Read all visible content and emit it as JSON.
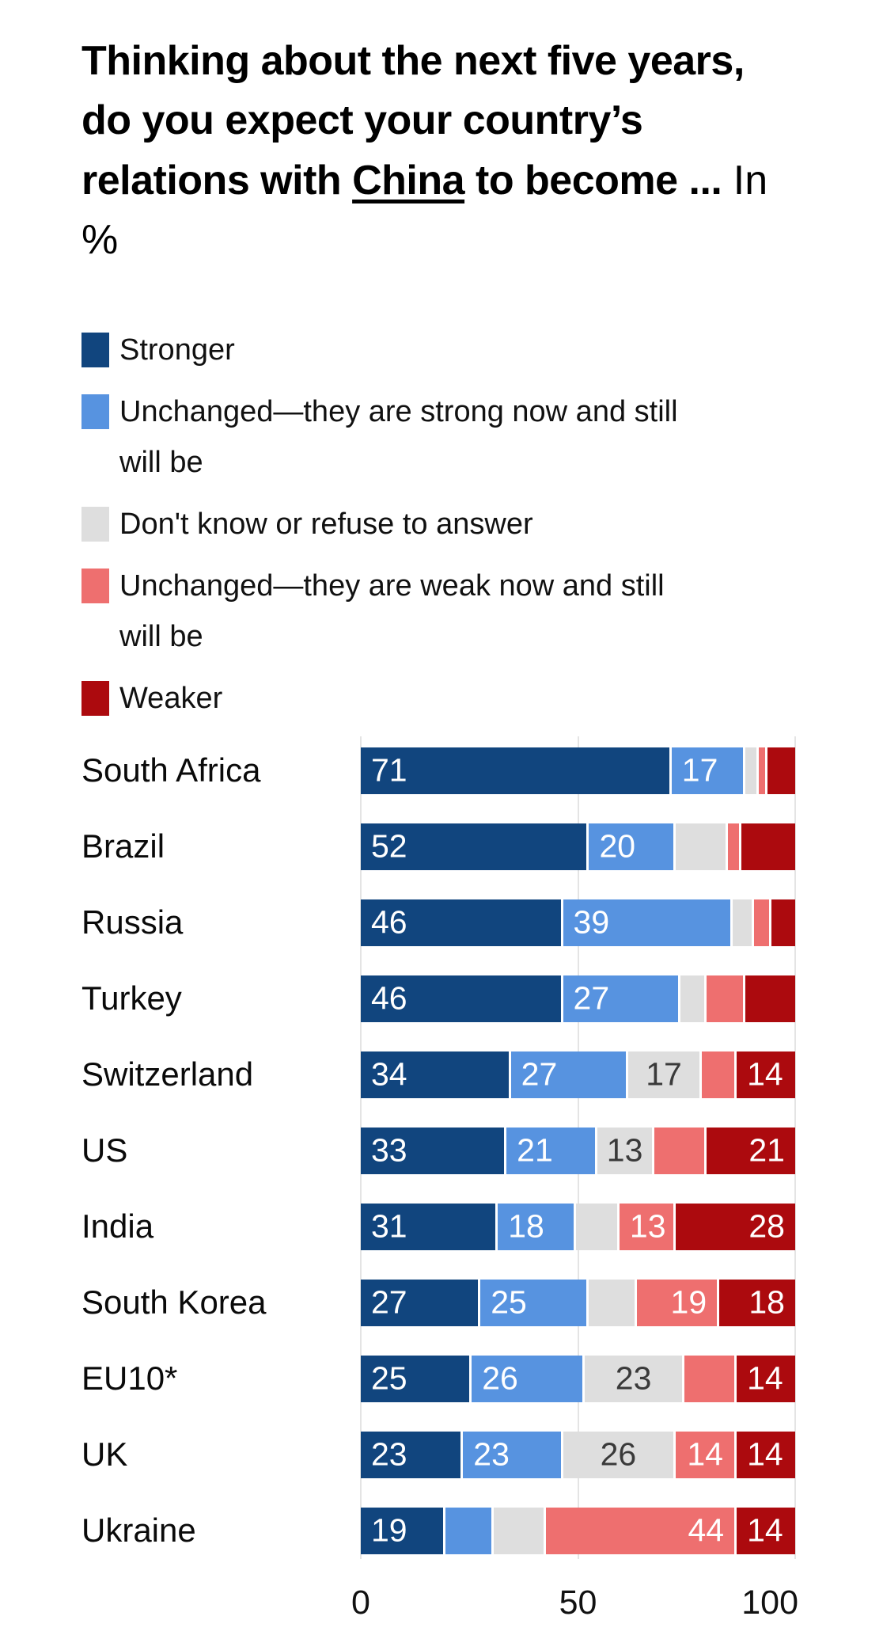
{
  "header": {
    "title_part1": "Thinking about the next five years, do you expect your country’s relations with ",
    "title_china": "China",
    "title_part2": " to become ...",
    "title_note": " In %"
  },
  "chart_data": {
    "type": "bar",
    "orientation": "horizontal-stacked",
    "title": "Thinking about the next five years, do you expect your country’s relations with China to become ...",
    "unit": "In %",
    "x_axis": {
      "min": 0,
      "max": 100,
      "ticks": [
        "0",
        "50",
        "100"
      ],
      "tick_positions": [
        "left",
        "center",
        "right"
      ]
    },
    "grid": "vertical lines at 0, 50, 100",
    "legend_position": "top-left, vertical list",
    "legend": [
      {
        "label": "Stronger",
        "color": "#11457E"
      },
      {
        "label": "Unchanged—they are strong now and still will be",
        "color": "#5793E0"
      },
      {
        "label": "Don't know or refuse to answer",
        "color": "#DEDEDE"
      },
      {
        "label": "Unchanged—they are weak now and still will be",
        "color": "#EE6F6F"
      },
      {
        "label": "Weaker",
        "color": "#AC0A0E"
      }
    ],
    "label_text_colors": [
      "#ffffff",
      "#ffffff",
      "#3a3a3a",
      "#ffffff",
      "#ffffff"
    ],
    "categories": [
      "South Africa",
      "Brazil",
      "Russia",
      "Turkey",
      "Switzerland",
      "US",
      "India",
      "South Korea",
      "EU10*",
      "UK",
      "Ukraine"
    ],
    "series": [
      {
        "name": "Stronger",
        "values": [
          71,
          52,
          46,
          46,
          34,
          33,
          31,
          27,
          25,
          23,
          19
        ]
      },
      {
        "name": "Unchanged—they are strong now and still will be",
        "values": [
          17,
          20,
          39,
          27,
          27,
          21,
          18,
          25,
          26,
          23,
          11
        ]
      },
      {
        "name": "Don't know or refuse to answer",
        "values": [
          3,
          12,
          5,
          6,
          17,
          13,
          10,
          11,
          23,
          26,
          12
        ]
      },
      {
        "name": "Unchanged—they are weak now and still will be",
        "values": [
          2,
          3,
          4,
          9,
          8,
          12,
          13,
          19,
          12,
          14,
          44
        ]
      },
      {
        "name": "Weaker",
        "values": [
          7,
          13,
          6,
          12,
          14,
          21,
          28,
          18,
          14,
          14,
          14
        ]
      }
    ],
    "rows": [
      {
        "country": "South Africa",
        "values": [
          71,
          17,
          3,
          2,
          7
        ],
        "labels": [
          "71",
          "17",
          "",
          "",
          ""
        ],
        "aligns": [
          "left",
          "left",
          "left",
          "left",
          "left"
        ]
      },
      {
        "country": "Brazil",
        "values": [
          52,
          20,
          12,
          3,
          13
        ],
        "labels": [
          "52",
          "20",
          "",
          "",
          ""
        ],
        "aligns": [
          "left",
          "left",
          "left",
          "left",
          "left"
        ]
      },
      {
        "country": "Russia",
        "values": [
          46,
          39,
          5,
          4,
          6
        ],
        "labels": [
          "46",
          "39",
          "",
          "",
          ""
        ],
        "aligns": [
          "left",
          "left",
          "left",
          "left",
          "left"
        ]
      },
      {
        "country": "Turkey",
        "values": [
          46,
          27,
          6,
          9,
          12
        ],
        "labels": [
          "46",
          "27",
          "",
          "",
          ""
        ],
        "aligns": [
          "left",
          "left",
          "left",
          "left",
          "left"
        ]
      },
      {
        "country": "Switzerland",
        "values": [
          34,
          27,
          17,
          8,
          14
        ],
        "labels": [
          "34",
          "27",
          "17",
          "",
          "14"
        ],
        "aligns": [
          "left",
          "left",
          "center",
          "left",
          "left"
        ]
      },
      {
        "country": "US",
        "values": [
          33,
          21,
          13,
          12,
          21
        ],
        "labels": [
          "33",
          "21",
          "13",
          "",
          "21"
        ],
        "aligns": [
          "left",
          "left",
          "center",
          "left",
          "right"
        ]
      },
      {
        "country": "India",
        "values": [
          31,
          18,
          10,
          13,
          28
        ],
        "labels": [
          "31",
          "18",
          "",
          "13",
          "28"
        ],
        "aligns": [
          "left",
          "left",
          "left",
          "left",
          "right"
        ]
      },
      {
        "country": "South Korea",
        "values": [
          27,
          25,
          11,
          19,
          18
        ],
        "labels": [
          "27",
          "25",
          "",
          "19",
          "18"
        ],
        "aligns": [
          "left",
          "left",
          "left",
          "right",
          "right"
        ]
      },
      {
        "country": "EU10*",
        "values": [
          25,
          26,
          23,
          12,
          14
        ],
        "labels": [
          "25",
          "26",
          "23",
          "",
          "14"
        ],
        "aligns": [
          "left",
          "left",
          "center",
          "left",
          "left"
        ]
      },
      {
        "country": "UK",
        "values": [
          23,
          23,
          26,
          14,
          14
        ],
        "labels": [
          "23",
          "23",
          "26",
          "14",
          "14"
        ],
        "aligns": [
          "left",
          "left",
          "center",
          "center",
          "left"
        ]
      },
      {
        "country": "Ukraine",
        "values": [
          19,
          11,
          12,
          44,
          14
        ],
        "labels": [
          "19",
          "",
          "",
          "44",
          "14"
        ],
        "aligns": [
          "left",
          "left",
          "left",
          "right",
          "left"
        ]
      }
    ]
  }
}
